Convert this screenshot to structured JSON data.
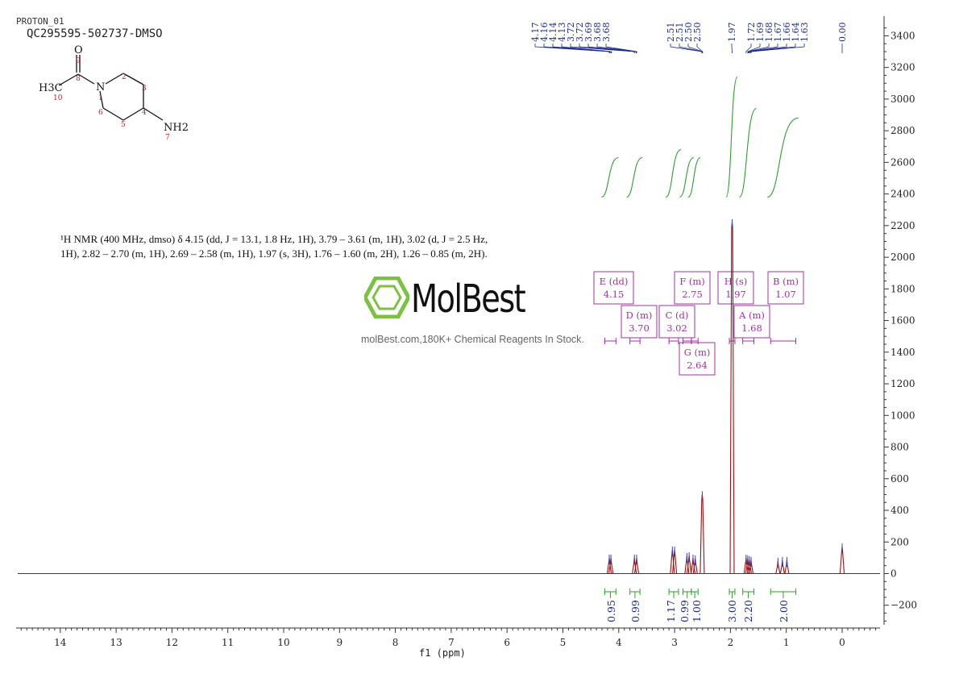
{
  "header": {
    "experiment": "PROTON_01",
    "sample": "QC295595-502737-DMSO"
  },
  "structure": {
    "atom_labels": [
      "O",
      "9",
      "8",
      "H3C",
      "10",
      "N",
      "1",
      "2",
      "3",
      "4",
      "5",
      "6",
      "NH2",
      "7"
    ]
  },
  "nmr_description": {
    "line1": "¹H NMR (400 MHz, dmso) δ 4.15 (dd, J = 13.1, 1.8 Hz, 1H), 3.79 – 3.61 (m, 1H), 3.02 (d, J = 2.5 Hz,",
    "line2": "1H), 2.82 – 2.70 (m, 1H), 2.69 – 2.58 (m, 1H), 1.97 (s, 3H), 1.76 – 1.60 (m, 2H), 1.26 – 0.85 (m, 2H)."
  },
  "watermark": {
    "name": "MolBest",
    "tagline": "molBest.com,180K+ Chemical Reagents In Stock."
  },
  "colors": {
    "spectrum": "#a01010",
    "peak_labels": "#1a2a8a",
    "integral": "#2e9e2e",
    "multiplet": "#a030a0",
    "logo": "#7cc242"
  },
  "chart_data": {
    "type": "line",
    "title": "",
    "xlabel": "f1 (ppm)",
    "ylabel": "",
    "xlim": [
      14.8,
      -0.7
    ],
    "ylim": [
      -340,
      3500
    ],
    "x_ticks": [
      14,
      13,
      12,
      11,
      10,
      9,
      8,
      7,
      6,
      5,
      4,
      3,
      2,
      1,
      0
    ],
    "y_ticks": [
      3400,
      3200,
      3000,
      2800,
      2600,
      2400,
      2200,
      2000,
      1800,
      1600,
      1400,
      1200,
      1000,
      800,
      600,
      400,
      200,
      0,
      -200
    ],
    "peak_labels": [
      "4.17",
      "4.16",
      "4.14",
      "4.13",
      "3.72",
      "3.72",
      "3.69",
      "3.68",
      "3.68",
      "2.51",
      "2.51",
      "2.50",
      "2.50",
      "1.97",
      "1.72",
      "1.69",
      "1.68",
      "1.67",
      "1.66",
      "1.64",
      "1.63",
      "0.00"
    ],
    "peaks": [
      {
        "ppm": 4.17,
        "height": 100
      },
      {
        "ppm": 4.14,
        "height": 100
      },
      {
        "ppm": 3.72,
        "height": 100
      },
      {
        "ppm": 3.68,
        "height": 100
      },
      {
        "ppm": 3.04,
        "height": 150
      },
      {
        "ppm": 3.0,
        "height": 150
      },
      {
        "ppm": 2.78,
        "height": 110
      },
      {
        "ppm": 2.74,
        "height": 115
      },
      {
        "ppm": 2.67,
        "height": 100
      },
      {
        "ppm": 2.63,
        "height": 95
      },
      {
        "ppm": 2.505,
        "height": 500
      },
      {
        "ppm": 1.97,
        "height": 2220
      },
      {
        "ppm": 1.72,
        "height": 100
      },
      {
        "ppm": 1.69,
        "height": 95
      },
      {
        "ppm": 1.66,
        "height": 90
      },
      {
        "ppm": 1.63,
        "height": 85
      },
      {
        "ppm": 1.15,
        "height": 80
      },
      {
        "ppm": 1.07,
        "height": 85
      },
      {
        "ppm": 0.99,
        "height": 85
      },
      {
        "ppm": 0.0,
        "height": 170
      }
    ],
    "integrals": [
      {
        "from": 4.25,
        "to": 4.05,
        "value": "0.95"
      },
      {
        "from": 3.8,
        "to": 3.62,
        "value": "0.99"
      },
      {
        "from": 3.1,
        "to": 2.93,
        "value": "1.17"
      },
      {
        "from": 2.85,
        "to": 2.7,
        "value": "0.99"
      },
      {
        "from": 2.7,
        "to": 2.58,
        "value": "1.00"
      },
      {
        "from": 2.02,
        "to": 1.92,
        "value": "3.00"
      },
      {
        "from": 1.78,
        "to": 1.58,
        "value": "2.20"
      },
      {
        "from": 1.28,
        "to": 0.83,
        "value": "2.00"
      }
    ],
    "multiplets": [
      {
        "label": "E (dd)",
        "shift": "4.15",
        "ppm": 4.15
      },
      {
        "label": "D (m)",
        "shift": "3.70",
        "ppm": 3.7
      },
      {
        "label": "C (d)",
        "shift": "3.02",
        "ppm": 3.02
      },
      {
        "label": "F (m)",
        "shift": "2.75",
        "ppm": 2.75
      },
      {
        "label": "G (m)",
        "shift": "2.64",
        "ppm": 2.64
      },
      {
        "label": "H (s)",
        "shift": "1.97",
        "ppm": 1.97
      },
      {
        "label": "A (m)",
        "shift": "1.68",
        "ppm": 1.68
      },
      {
        "label": "B (m)",
        "shift": "1.07",
        "ppm": 1.07
      }
    ]
  }
}
